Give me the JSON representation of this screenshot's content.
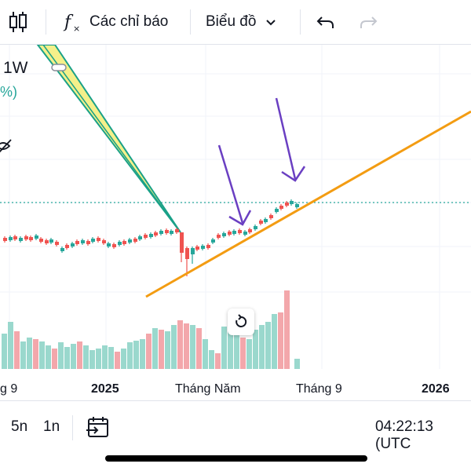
{
  "toolbar": {
    "indicators_label": "Các chỉ báo",
    "chart_type_label": "Biểu đồ"
  },
  "legend": {
    "interval": "1W",
    "change_fragment": "%)"
  },
  "xaxis": {
    "labels": [
      "g 9",
      "2025",
      "Tháng Năm",
      "Tháng 9",
      "2026"
    ]
  },
  "bottombar": {
    "ranges": [
      "5n",
      "1n"
    ],
    "time": "04:22:13 (UTC"
  },
  "colors": {
    "up": "#26a69a",
    "down": "#ef5350",
    "trendline": "#f39c12",
    "arrow": "#6a3fc2",
    "volume_up": "#9ad8cd",
    "volume_down": "#f3a7ab",
    "price_line": "#26a69a"
  },
  "icons": [
    "candles-icon",
    "fx-icon",
    "chevron-down-icon",
    "undo-icon",
    "redo-icon",
    "reset-icon",
    "goto-date-icon",
    "eye-hidden-icon"
  ],
  "chart_data": {
    "type": "candlestick",
    "interval": "1W",
    "xlabels": [
      "g 9",
      "2025",
      "Tháng Năm",
      "Tháng 9",
      "2026"
    ]
  }
}
